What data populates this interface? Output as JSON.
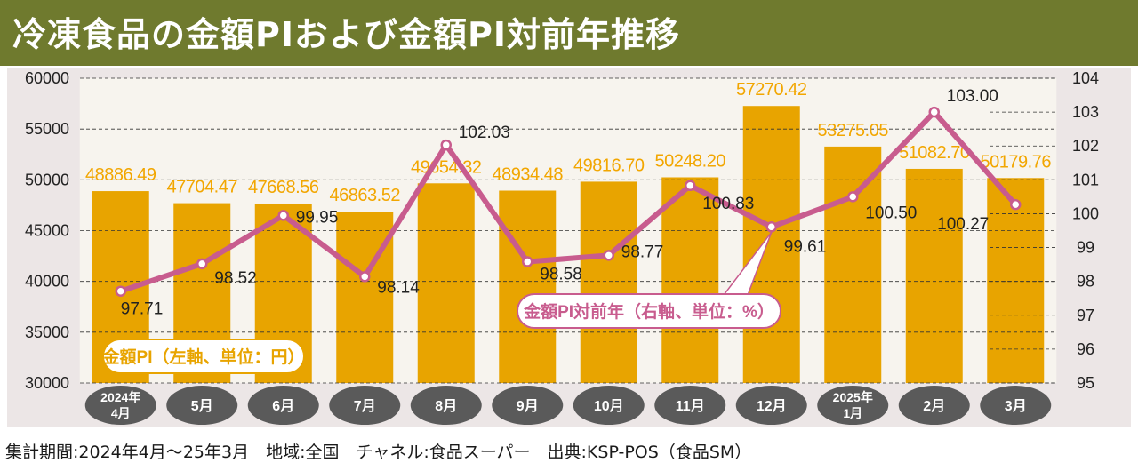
{
  "title": "冷凍食品の金額PIおよび金額PI対前年推移",
  "footnote": "集計期間:2024年4月～25年3月　地域:全国　チャネル:食品スーパー　出典:KSP-POS（食品SM）",
  "chart_data": {
    "type": "bar+line",
    "categories": [
      [
        "2024年",
        "4月"
      ],
      [
        "5月"
      ],
      [
        "6月"
      ],
      [
        "7月"
      ],
      [
        "8月"
      ],
      [
        "9月"
      ],
      [
        "10月"
      ],
      [
        "11月"
      ],
      [
        "12月"
      ],
      [
        "2025年",
        "1月"
      ],
      [
        "2月"
      ],
      [
        "3月"
      ]
    ],
    "series": [
      {
        "name": "金額PI（左軸、単位：円）",
        "type": "bar",
        "axis": "left",
        "values": [
          48886.49,
          47704.47,
          47668.56,
          46863.52,
          49654.32,
          48934.48,
          49816.7,
          50248.2,
          57270.42,
          53275.05,
          51082.7,
          50179.76
        ],
        "labels": [
          "48886.49",
          "47704.47",
          "47668.56",
          "46863.52",
          "49654.32",
          "48934.48",
          "49816.70",
          "50248.20",
          "57270.42",
          "53275.05",
          "51082.70",
          "50179.76"
        ]
      },
      {
        "name": "金額PI対前年（右軸、単位：%）",
        "type": "line",
        "axis": "right",
        "values": [
          97.71,
          98.52,
          99.95,
          98.14,
          102.03,
          98.58,
          98.77,
          100.83,
          99.61,
          100.5,
          103.0,
          100.27
        ],
        "labels": [
          "97.71",
          "98.52",
          "99.95",
          "98.14",
          "102.03",
          "98.58",
          "98.77",
          "100.83",
          "99.61",
          "100.50",
          "103.00",
          "100.27"
        ]
      }
    ],
    "left_axis": {
      "ylim": [
        30000,
        60000
      ],
      "ticks": [
        "30000",
        "35000",
        "40000",
        "45000",
        "50000",
        "55000",
        "60000"
      ]
    },
    "right_axis": {
      "ylim": [
        95,
        104
      ],
      "ticks": [
        "95",
        "96",
        "97",
        "98",
        "99",
        "100",
        "101",
        "102",
        "103",
        "104"
      ]
    },
    "colors": {
      "bar": "#e8a400",
      "line": "#c85c8e",
      "bar_label": "#f2a600",
      "column_band": "#f7f4ee",
      "background": "#ece6e6",
      "pill": "#5a5a5a"
    }
  }
}
